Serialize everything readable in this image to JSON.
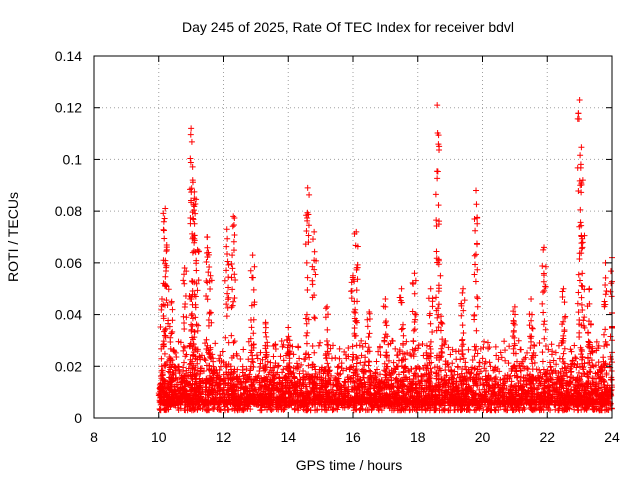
{
  "chart_data": {
    "type": "scatter",
    "title": "Day 245 of 2025, Rate Of TEC Index for receiver bdvl",
    "xlabel": "GPS time / hours",
    "ylabel": "ROTI / TECUs",
    "xlim": [
      8,
      24
    ],
    "ylim": [
      0,
      0.14
    ],
    "x_ticks": [
      8,
      10,
      12,
      14,
      16,
      18,
      20,
      22,
      24
    ],
    "x_tick_labels": [
      "8",
      "10",
      "12",
      "14",
      "16",
      "18",
      "20",
      "22",
      "24"
    ],
    "y_ticks": [
      0,
      0.02,
      0.04,
      0.06,
      0.08,
      0.1,
      0.12,
      0.14
    ],
    "y_tick_labels": [
      "0",
      "0.02",
      "0.04",
      "0.06",
      "0.08",
      "0.1",
      "0.12",
      "0.14"
    ],
    "grid": true,
    "marker": "+",
    "series": [
      {
        "name": "ROTI",
        "color": "#ff0000",
        "bands": [
          [
            10.0,
            24.0,
            0.003,
            0.03
          ],
          [
            10.0,
            24.0,
            0.005,
            0.02
          ],
          [
            10.0,
            24.0,
            0.006,
            0.016
          ]
        ],
        "spikes": [
          [
            10.1,
            0.046
          ],
          [
            10.2,
            0.081
          ],
          [
            10.25,
            0.065
          ],
          [
            10.4,
            0.045
          ],
          [
            10.8,
            0.058
          ],
          [
            11.0,
            0.112
          ],
          [
            11.05,
            0.092
          ],
          [
            11.1,
            0.085
          ],
          [
            11.2,
            0.065
          ],
          [
            11.5,
            0.07
          ],
          [
            11.6,
            0.055
          ],
          [
            12.1,
            0.073
          ],
          [
            12.3,
            0.078
          ],
          [
            12.9,
            0.063
          ],
          [
            13.3,
            0.037
          ],
          [
            14.0,
            0.035
          ],
          [
            14.6,
            0.089
          ],
          [
            14.8,
            0.072
          ],
          [
            15.2,
            0.043
          ],
          [
            16.0,
            0.055
          ],
          [
            16.1,
            0.072
          ],
          [
            16.5,
            0.041
          ],
          [
            17.0,
            0.046
          ],
          [
            17.5,
            0.05
          ],
          [
            17.9,
            0.056
          ],
          [
            18.4,
            0.05
          ],
          [
            18.6,
            0.121
          ],
          [
            18.7,
            0.055
          ],
          [
            19.4,
            0.05
          ],
          [
            19.8,
            0.088
          ],
          [
            21.0,
            0.043
          ],
          [
            21.5,
            0.046
          ],
          [
            21.9,
            0.066
          ],
          [
            22.5,
            0.05
          ],
          [
            23.0,
            0.123
          ],
          [
            23.1,
            0.092
          ],
          [
            23.3,
            0.05
          ],
          [
            23.8,
            0.06
          ],
          [
            24.0,
            0.062
          ]
        ]
      }
    ]
  }
}
